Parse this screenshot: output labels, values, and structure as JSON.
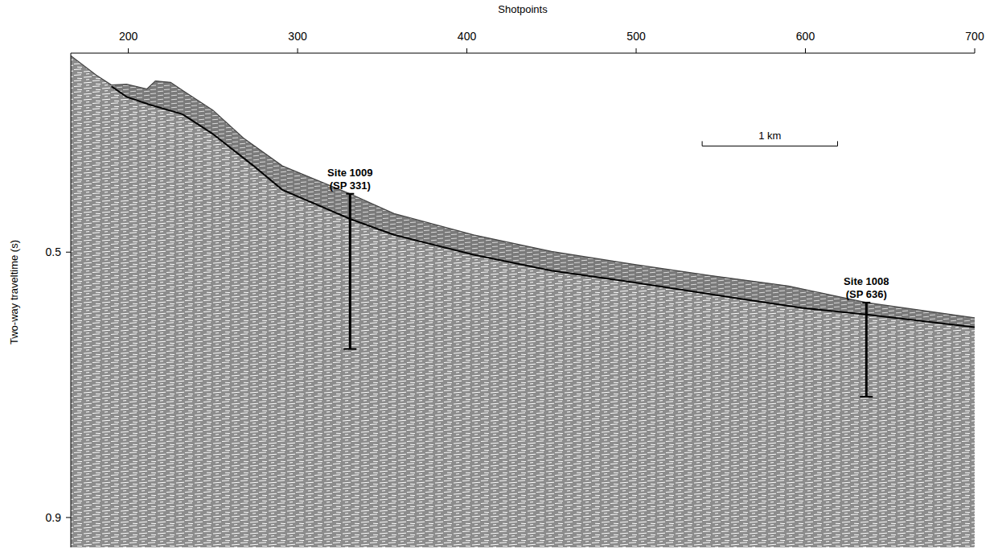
{
  "chart_data": {
    "type": "line",
    "x_label": "Shotpoints",
    "y_label": "Two-way traveltime (s)",
    "xlim": [
      166,
      700
    ],
    "ylim": [
      0.2,
      0.945
    ],
    "xticks": [
      200,
      300,
      400,
      500,
      600,
      700
    ],
    "yticks": [
      0.5,
      0.9
    ],
    "grid": false,
    "series": [
      {
        "color": "#444444",
        "x": [
          166,
          181,
          190,
          199,
          211,
          216,
          225,
          232,
          250,
          268,
          291,
          331,
          357,
          404,
          450,
          500,
          543,
          590,
          636,
          700
        ],
        "values": [
          0.204,
          0.233,
          0.248,
          0.247,
          0.254,
          0.242,
          0.244,
          0.256,
          0.286,
          0.328,
          0.37,
          0.412,
          0.442,
          0.474,
          0.499,
          0.519,
          0.535,
          0.551,
          0.576,
          0.599
        ]
      },
      {
        "color": "#000000",
        "x": [
          190,
          199,
          213,
          232,
          250,
          274,
          291,
          331,
          357,
          404,
          450,
          500,
          561,
          598,
          636,
          700
        ],
        "values": [
          0.25,
          0.266,
          0.278,
          0.292,
          0.322,
          0.37,
          0.406,
          0.45,
          0.474,
          0.504,
          0.528,
          0.546,
          0.57,
          0.584,
          0.594,
          0.613
        ]
      }
    ],
    "annotations": [
      {
        "label": "Site 1009",
        "sublabel": "(SP 331)",
        "x": 331,
        "y_top": 0.412,
        "y_bottom": 0.646
      },
      {
        "label": "Site 1008",
        "sublabel": "(SP 636)",
        "x": 636,
        "y_top": 0.576,
        "y_bottom": 0.718
      }
    ],
    "scale_bar": {
      "label": "1 km",
      "x0": 539,
      "x1": 619,
      "y": 0.34
    }
  }
}
